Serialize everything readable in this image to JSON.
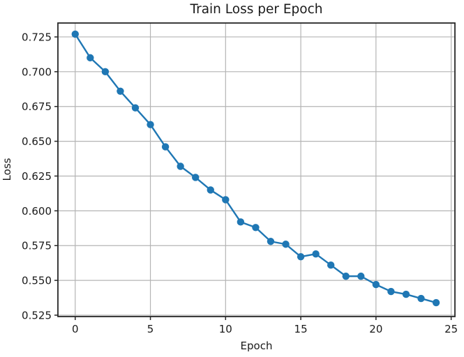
{
  "figure": {
    "title": "Train Loss per Epoch",
    "xlabel": "Epoch",
    "ylabel": "Loss"
  },
  "chart_data": {
    "type": "line",
    "title": "Train Loss per Epoch",
    "xlabel": "Epoch",
    "ylabel": "Loss",
    "grid": true,
    "legend": "none",
    "xlim": [
      -1.15,
      25.25
    ],
    "ylim": [
      0.524,
      0.735
    ],
    "xticks": {
      "values": [
        0,
        5,
        10,
        15,
        20,
        25
      ],
      "labels": [
        "0",
        "5",
        "10",
        "15",
        "20",
        "25"
      ]
    },
    "yticks": {
      "values": [
        0.525,
        0.55,
        0.575,
        0.6,
        0.625,
        0.65,
        0.675,
        0.7,
        0.725
      ],
      "labels": [
        "0.525",
        "0.550",
        "0.575",
        "0.600",
        "0.625",
        "0.650",
        "0.675",
        "0.700",
        "0.725"
      ]
    },
    "series": [
      {
        "name": "Train Loss",
        "x": [
          0,
          1,
          2,
          3,
          4,
          5,
          6,
          7,
          8,
          9,
          10,
          11,
          12,
          13,
          14,
          15,
          16,
          17,
          18,
          19,
          20,
          21,
          22,
          23,
          24
        ],
        "y": [
          0.727,
          0.71,
          0.7,
          0.686,
          0.674,
          0.662,
          0.646,
          0.632,
          0.624,
          0.615,
          0.608,
          0.592,
          0.588,
          0.578,
          0.576,
          0.567,
          0.569,
          0.561,
          0.553,
          0.553,
          0.547,
          0.542,
          0.54,
          0.537,
          0.534
        ],
        "marker": "circle"
      }
    ],
    "colors": {
      "line": "#1f77b4",
      "marker": "#1f77b4",
      "grid": "#b4b4b4",
      "spine": "#262626",
      "text": "#1a1a1a",
      "background": "#ffffff"
    }
  }
}
